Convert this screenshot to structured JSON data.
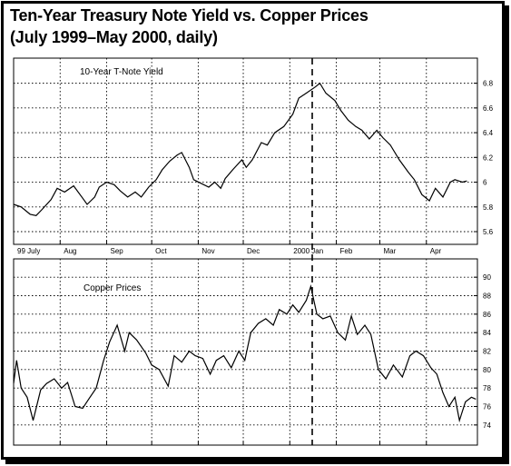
{
  "title_line1": "Ten-Year Treasury Note Yield vs. Copper Prices",
  "title_line2": "(July 1999–May 2000, daily)",
  "colors": {
    "line": "#000000",
    "grid": "#000000",
    "background": "#ffffff"
  },
  "x_tick_labels": [
    "99 July",
    "Aug",
    "Sep",
    "Oct",
    "Nov",
    "Dec",
    "2000 Jan",
    "Feb",
    "Mar",
    "Apr"
  ],
  "chart_data": [
    {
      "type": "line",
      "series_label": "10-Year T-Note Yield",
      "x_months": [
        "1999-07",
        "1999-08",
        "1999-09",
        "1999-10",
        "1999-11",
        "1999-12",
        "2000-01",
        "2000-02",
        "2000-03",
        "2000-04"
      ],
      "ylim": [
        5.6,
        6.9
      ],
      "y_ticks": [
        5.6,
        5.8,
        6,
        6.2,
        6.4,
        6.6,
        6.8
      ],
      "y_tick_labels": [
        "5.6",
        "5.8",
        "6",
        "6.2",
        "6.4",
        "6.6",
        "6.8"
      ],
      "grid": "dotted horizontal",
      "points": [
        [
          "1999-07-01",
          5.82
        ],
        [
          "1999-07-06",
          5.8
        ],
        [
          "1999-07-12",
          5.74
        ],
        [
          "1999-07-16",
          5.73
        ],
        [
          "1999-07-20",
          5.78
        ],
        [
          "1999-07-26",
          5.86
        ],
        [
          "1999-07-30",
          5.95
        ],
        [
          "1999-08-04",
          5.92
        ],
        [
          "1999-08-10",
          5.97
        ],
        [
          "1999-08-16",
          5.87
        ],
        [
          "1999-08-19",
          5.82
        ],
        [
          "1999-08-24",
          5.88
        ],
        [
          "1999-08-27",
          5.96
        ],
        [
          "1999-09-01",
          6.0
        ],
        [
          "1999-09-06",
          5.98
        ],
        [
          "1999-09-10",
          5.93
        ],
        [
          "1999-09-15",
          5.88
        ],
        [
          "1999-09-20",
          5.92
        ],
        [
          "1999-09-24",
          5.88
        ],
        [
          "1999-09-29",
          5.96
        ],
        [
          "1999-10-04",
          6.02
        ],
        [
          "1999-10-08",
          6.1
        ],
        [
          "1999-10-13",
          6.17
        ],
        [
          "1999-10-18",
          6.22
        ],
        [
          "1999-10-21",
          6.24
        ],
        [
          "1999-10-26",
          6.12
        ],
        [
          "1999-10-29",
          6.02
        ],
        [
          "1999-11-03",
          5.99
        ],
        [
          "1999-11-08",
          5.96
        ],
        [
          "1999-11-12",
          6.0
        ],
        [
          "1999-11-16",
          5.95
        ],
        [
          "1999-11-19",
          6.03
        ],
        [
          "1999-11-24",
          6.1
        ],
        [
          "1999-11-30",
          6.18
        ],
        [
          "1999-12-03",
          6.12
        ],
        [
          "1999-12-07",
          6.18
        ],
        [
          "1999-12-13",
          6.32
        ],
        [
          "1999-12-17",
          6.3
        ],
        [
          "1999-12-22",
          6.4
        ],
        [
          "1999-12-28",
          6.45
        ],
        [
          "2000-01-03",
          6.55
        ],
        [
          "2000-01-07",
          6.68
        ],
        [
          "2000-01-12",
          6.72
        ],
        [
          "2000-01-18",
          6.77
        ],
        [
          "2000-01-21",
          6.8
        ],
        [
          "2000-01-25",
          6.72
        ],
        [
          "2000-01-31",
          6.66
        ],
        [
          "2000-02-04",
          6.58
        ],
        [
          "2000-02-09",
          6.5
        ],
        [
          "2000-02-14",
          6.45
        ],
        [
          "2000-02-18",
          6.42
        ],
        [
          "2000-02-23",
          6.35
        ],
        [
          "2000-02-28",
          6.42
        ],
        [
          "2000-03-03",
          6.36
        ],
        [
          "2000-03-08",
          6.3
        ],
        [
          "2000-03-14",
          6.18
        ],
        [
          "2000-03-20",
          6.08
        ],
        [
          "2000-03-24",
          6.02
        ],
        [
          "2000-03-29",
          5.9
        ],
        [
          "2000-04-03",
          5.85
        ],
        [
          "2000-04-07",
          5.95
        ],
        [
          "2000-04-12",
          5.88
        ],
        [
          "2000-04-17",
          6.0
        ],
        [
          "2000-04-20",
          6.02
        ],
        [
          "2000-04-25",
          6.0
        ],
        [
          "2000-04-28",
          6.01
        ]
      ]
    },
    {
      "type": "line",
      "series_label": "Copper Prices",
      "x_months": [
        "1999-07",
        "1999-08",
        "1999-09",
        "1999-10",
        "1999-11",
        "1999-12",
        "2000-01",
        "2000-02",
        "2000-03",
        "2000-04"
      ],
      "ylim": [
        73,
        91
      ],
      "y_ticks": [
        74,
        76,
        78,
        80,
        82,
        84,
        86,
        88,
        90
      ],
      "y_tick_labels": [
        "74",
        "76",
        "78",
        "80",
        "82",
        "84",
        "86",
        "88",
        "90"
      ],
      "grid": "dotted horizontal",
      "points": [
        [
          "1999-07-01",
          78.5
        ],
        [
          "1999-07-03",
          81.0
        ],
        [
          "1999-07-06",
          78.0
        ],
        [
          "1999-07-10",
          77.0
        ],
        [
          "1999-07-14",
          74.5
        ],
        [
          "1999-07-19",
          77.8
        ],
        [
          "1999-07-23",
          78.5
        ],
        [
          "1999-07-28",
          79.0
        ],
        [
          "1999-08-02",
          78.0
        ],
        [
          "1999-08-06",
          78.6
        ],
        [
          "1999-08-11",
          76.0
        ],
        [
          "1999-08-16",
          75.8
        ],
        [
          "1999-08-20",
          76.8
        ],
        [
          "1999-08-25",
          78.0
        ],
        [
          "1999-08-30",
          81.0
        ],
        [
          "1999-09-03",
          83.0
        ],
        [
          "1999-09-08",
          84.8
        ],
        [
          "1999-09-13",
          82.0
        ],
        [
          "1999-09-16",
          84.0
        ],
        [
          "1999-09-21",
          83.2
        ],
        [
          "1999-09-27",
          81.8
        ],
        [
          "1999-10-01",
          80.5
        ],
        [
          "1999-10-06",
          80.0
        ],
        [
          "1999-10-12",
          78.2
        ],
        [
          "1999-10-16",
          81.5
        ],
        [
          "1999-10-21",
          80.8
        ],
        [
          "1999-10-26",
          82.0
        ],
        [
          "1999-10-30",
          81.5
        ],
        [
          "1999-11-04",
          81.2
        ],
        [
          "1999-11-09",
          79.5
        ],
        [
          "1999-11-13",
          81.0
        ],
        [
          "1999-11-18",
          81.5
        ],
        [
          "1999-11-23",
          80.2
        ],
        [
          "1999-11-28",
          82.0
        ],
        [
          "1999-12-02",
          81.0
        ],
        [
          "1999-12-06",
          84.0
        ],
        [
          "1999-12-11",
          85.0
        ],
        [
          "1999-12-16",
          85.5
        ],
        [
          "1999-12-21",
          84.8
        ],
        [
          "1999-12-25",
          86.5
        ],
        [
          "1999-12-30",
          86.0
        ],
        [
          "2000-01-03",
          87.0
        ],
        [
          "2000-01-07",
          86.2
        ],
        [
          "2000-01-12",
          87.5
        ],
        [
          "2000-01-15",
          89.0
        ],
        [
          "2000-01-19",
          86.0
        ],
        [
          "2000-01-23",
          85.5
        ],
        [
          "2000-01-28",
          85.8
        ],
        [
          "2000-02-02",
          84.0
        ],
        [
          "2000-02-07",
          83.2
        ],
        [
          "2000-02-11",
          85.8
        ],
        [
          "2000-02-15",
          83.8
        ],
        [
          "2000-02-20",
          84.8
        ],
        [
          "2000-02-24",
          83.8
        ],
        [
          "2000-02-29",
          80.0
        ],
        [
          "2000-03-05",
          79.0
        ],
        [
          "2000-03-10",
          80.5
        ],
        [
          "2000-03-16",
          79.2
        ],
        [
          "2000-03-21",
          81.5
        ],
        [
          "2000-03-25",
          82.0
        ],
        [
          "2000-03-30",
          81.5
        ],
        [
          "2000-04-04",
          80.2
        ],
        [
          "2000-04-08",
          79.5
        ],
        [
          "2000-04-12",
          77.5
        ],
        [
          "2000-04-16",
          76.0
        ],
        [
          "2000-04-20",
          77.0
        ],
        [
          "2000-04-23",
          74.5
        ],
        [
          "2000-04-27",
          76.5
        ],
        [
          "2000-05-01",
          77.0
        ],
        [
          "2000-05-04",
          76.8
        ]
      ]
    }
  ]
}
